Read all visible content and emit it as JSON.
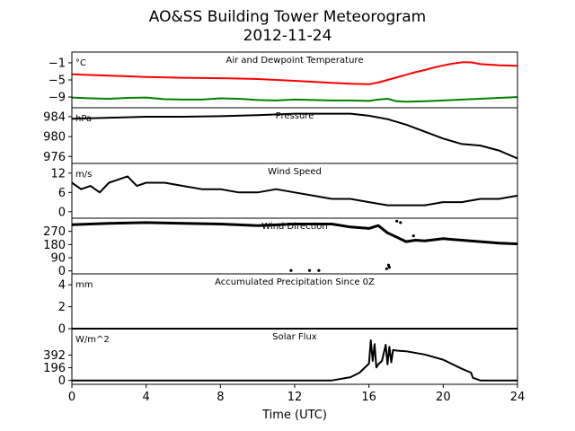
{
  "title": "AO&SS Building Tower Meteorogram",
  "subtitle": "2012-11-24",
  "xlabel": "Time (UTC)",
  "x_range": [
    0,
    24
  ],
  "x_ticks": [
    0,
    4,
    8,
    12,
    16,
    20,
    24
  ],
  "chart_data": [
    {
      "type": "line",
      "title": "Air and Dewpoint Temperature",
      "unit_label": "°C",
      "ylim": [
        -11.5,
        1.5
      ],
      "y_ticks": [
        {
          "v": -1,
          "label": "−1"
        },
        {
          "v": -5,
          "label": "−5"
        },
        {
          "v": -9,
          "label": "−9"
        }
      ],
      "series": [
        {
          "color": "#ff0000",
          "x": [
            0,
            2,
            4,
            6,
            8,
            10,
            12,
            14,
            15,
            16,
            16.5,
            17,
            17.5,
            18,
            18.5,
            19,
            19.5,
            20,
            20.5,
            21,
            21.5,
            22,
            23,
            24
          ],
          "y": [
            -3.7,
            -4.0,
            -4.3,
            -4.5,
            -4.6,
            -4.8,
            -5.2,
            -5.7,
            -5.9,
            -6.0,
            -5.6,
            -5.0,
            -4.4,
            -3.8,
            -3.2,
            -2.7,
            -2.1,
            -1.6,
            -1.2,
            -0.9,
            -0.9,
            -1.3,
            -1.6,
            -1.7
          ]
        },
        {
          "color": "#008000",
          "x": [
            0,
            1,
            2,
            3,
            4,
            5,
            6,
            7,
            8,
            9,
            10,
            11,
            12,
            13,
            14,
            15,
            16,
            16.5,
            17,
            17.5,
            18,
            19,
            20,
            21,
            22,
            23,
            24
          ],
          "y": [
            -9.1,
            -9.3,
            -9.4,
            -9.2,
            -9.1,
            -9.5,
            -9.6,
            -9.6,
            -9.3,
            -9.4,
            -9.7,
            -9.8,
            -9.6,
            -9.7,
            -9.8,
            -9.8,
            -9.9,
            -9.6,
            -9.4,
            -10.0,
            -10.1,
            -10.0,
            -9.8,
            -9.6,
            -9.4,
            -9.2,
            -9.0
          ]
        }
      ]
    },
    {
      "type": "line",
      "title": "Pressure",
      "unit_label": "hPa",
      "ylim": [
        974.6,
        985.8
      ],
      "y_ticks": [
        {
          "v": 984,
          "label": "984"
        },
        {
          "v": 980,
          "label": "980"
        },
        {
          "v": 976,
          "label": "976"
        }
      ],
      "series": [
        {
          "color": "#000000",
          "x": [
            0,
            2,
            4,
            6,
            8,
            10,
            12,
            14,
            15,
            16,
            17,
            18,
            19,
            20,
            21,
            22,
            23,
            24
          ],
          "y": [
            983.6,
            983.8,
            984.0,
            984.0,
            984.1,
            984.3,
            984.6,
            984.6,
            984.6,
            984.2,
            983.5,
            982.4,
            981.0,
            979.6,
            978.5,
            978.2,
            977.2,
            975.6
          ]
        }
      ]
    },
    {
      "type": "line",
      "title": "Wind Speed",
      "unit_label": "m/s",
      "ylim": [
        -2,
        15
      ],
      "y_ticks": [
        {
          "v": 12,
          "label": "12"
        },
        {
          "v": 6,
          "label": "6"
        },
        {
          "v": 0,
          "label": "0"
        }
      ],
      "series": [
        {
          "color": "#000000",
          "x": [
            0,
            0.5,
            1,
            1.5,
            2,
            2.5,
            3,
            3.5,
            4,
            5,
            6,
            7,
            8,
            9,
            10,
            11,
            12,
            13,
            14,
            15,
            16,
            17,
            18,
            19,
            20,
            21,
            22,
            23,
            24
          ],
          "y": [
            9,
            7,
            8,
            6,
            9,
            10,
            11,
            8,
            9,
            9,
            8,
            7,
            7,
            6,
            6,
            7,
            6,
            5,
            4,
            4,
            3,
            2,
            2,
            2,
            3,
            3,
            4,
            4,
            5
          ]
        }
      ]
    },
    {
      "type": "scatter",
      "title": "Wind Direction",
      "unit_label": "",
      "ylim": [
        -20,
        360
      ],
      "y_ticks": [
        {
          "v": 270,
          "label": "270"
        },
        {
          "v": 180,
          "label": "180"
        },
        {
          "v": 90,
          "label": "90"
        },
        {
          "v": 0,
          "label": "0"
        }
      ],
      "series": [
        {
          "color": "#000000",
          "x": [
            0,
            2,
            4,
            6,
            8,
            10,
            12,
            14,
            15,
            16,
            16.5,
            17,
            17.5,
            18,
            18.5,
            19,
            20,
            21,
            22,
            23,
            24
          ],
          "y": [
            315,
            325,
            330,
            325,
            320,
            310,
            320,
            320,
            300,
            290,
            310,
            260,
            230,
            200,
            210,
            205,
            220,
            210,
            200,
            190,
            185
          ]
        }
      ],
      "outliers": [
        {
          "x": 11.8,
          "y": 3
        },
        {
          "x": 12.8,
          "y": 3
        },
        {
          "x": 13.3,
          "y": 3
        },
        {
          "x": 16.95,
          "y": 15
        },
        {
          "x": 17.05,
          "y": 40
        },
        {
          "x": 17.1,
          "y": 25
        },
        {
          "x": 17.5,
          "y": 340
        },
        {
          "x": 17.7,
          "y": 330
        },
        {
          "x": 18.4,
          "y": 240
        }
      ]
    },
    {
      "type": "line",
      "title": "Accumulated Precipitation Since 0Z",
      "unit_label": "mm",
      "ylim": [
        0,
        5
      ],
      "y_ticks": [
        {
          "v": 4,
          "label": "4"
        },
        {
          "v": 2,
          "label": "2"
        },
        {
          "v": 0,
          "label": "0"
        }
      ],
      "series": [
        {
          "color": "#000000",
          "x": [
            0,
            24
          ],
          "y": [
            0,
            0
          ]
        }
      ]
    },
    {
      "type": "line",
      "title": "Solar Flux",
      "unit_label": "W/m^2",
      "ylim": [
        -60,
        800
      ],
      "y_ticks": [
        {
          "v": 392,
          "label": "392"
        },
        {
          "v": 196,
          "label": "196"
        },
        {
          "v": 0,
          "label": "0"
        }
      ],
      "series": [
        {
          "color": "#000000",
          "x": [
            0,
            14,
            15,
            15.5,
            16,
            16.1,
            16.2,
            16.3,
            16.4,
            16.5,
            16.7,
            16.9,
            17,
            17.1,
            17.2,
            17.3,
            17.5,
            18,
            19,
            20,
            21,
            21.5,
            21.6,
            22,
            24
          ],
          "y": [
            0,
            0,
            50,
            120,
            260,
            620,
            300,
            560,
            200,
            250,
            300,
            550,
            250,
            520,
            280,
            470,
            460,
            450,
            400,
            320,
            180,
            120,
            40,
            0,
            0
          ]
        }
      ]
    }
  ]
}
